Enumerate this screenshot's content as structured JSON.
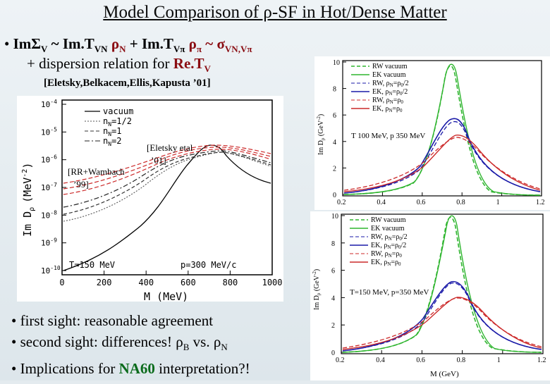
{
  "slide": {
    "title": "Model Comparison of ρ-SF in Hot/Dense Matter",
    "line1": {
      "bullet": "•",
      "a": "ImΣ",
      "a_sub": "V",
      "b": " ~ Im.T",
      "b_sub": "VN",
      "c": " ρ",
      "c_sub": "N",
      "d": " + Im.T",
      "d_sub": "Vπ",
      "e": " ρ",
      "e_sub": "π",
      "f": " ~ σ",
      "f_sub": "VN,Vπ"
    },
    "line2": {
      "text": "+ dispersion relation for ",
      "bold": "Re.T",
      "bold_sub": "V"
    },
    "ref": "[Eletsky,Belkacem,Ellis,Kapusta ’01]",
    "bullets": {
      "b1": "• first sight: reasonable agreement",
      "b2_a": "• second sight: differences!   ρ",
      "b2_sub1": "B",
      "b2_b": " vs. ρ",
      "b2_sub2": "N",
      "b3_a": "• Implications for ",
      "b3_bold": "NA60",
      "b3_b": " interpretation?!"
    }
  },
  "left_plot": {
    "ylabel": "Im D",
    "ylabel_sub": "ρ",
    "yunit": "(MeV",
    "yunit_sup": "-2",
    "yunit_close": ")",
    "xlabel": "M (MeV)",
    "xticks": [
      "0",
      "200",
      "400",
      "600",
      "800",
      "1000"
    ],
    "yticks": [
      "10",
      "10",
      "10",
      "10",
      "10",
      "10",
      "10"
    ],
    "yexp": [
      "-4",
      "-5",
      "-6",
      "-7",
      "-8",
      "-9",
      "-10"
    ],
    "legend": [
      "vacuum",
      "n",
      "n",
      "n"
    ],
    "legend_sub": [
      "",
      "N",
      "N",
      "N"
    ],
    "legend_val": [
      "",
      "=1/2",
      "=1",
      "=2"
    ],
    "label_t": "T=150 MeV",
    "label_p": "p=300 MeV/c",
    "ann_rr": "[RR+Wambach",
    "ann_rr2": "’99]",
    "ann_el": "[Eletsky etal",
    "ann_el2": "’01]"
  },
  "top_plot": {
    "ylabel": "Im D",
    "ylabel_sub": "ρ",
    "yunit": " (GeV",
    "yunit_sup": "-2",
    "yunit_close": ")",
    "yticks": [
      "10",
      "8",
      "6",
      "4",
      "2",
      "0"
    ],
    "xticks": [
      "0.2",
      "0.4",
      "0.6",
      "0.8",
      "1",
      "1.2"
    ],
    "legend": [
      "RW vacuum",
      "EK vacuum",
      "RW, ρ",
      "EK, ρ",
      "RW, ρ",
      "EK, ρ"
    ],
    "legend_sub": [
      "",
      "",
      "N",
      "N",
      "N",
      "N"
    ],
    "legend_val": [
      "",
      "",
      "=ρ",
      "=ρ",
      "=ρ",
      "=ρ"
    ],
    "legend_sub2": [
      "",
      "",
      "0",
      "0",
      "0",
      "0"
    ],
    "legend_tail": [
      "",
      "",
      "/2",
      "/2",
      "",
      ""
    ],
    "label": "T  100 MeV, p  350 MeV"
  },
  "bottom_plot": {
    "ylabel": "Im D",
    "ylabel_sub": "ρ",
    "yunit": " (GeV",
    "yunit_sup": "-2",
    "yunit_close": ")",
    "yticks": [
      "10",
      "8",
      "6",
      "4",
      "2",
      "0"
    ],
    "xticks": [
      "0.2",
      "0.4",
      "0.6",
      "0.8",
      "1",
      "1.2"
    ],
    "xlabel": "M (GeV)",
    "legend": [
      "RW vacuum",
      "EK vacuum",
      "RW, ρ",
      "EK, ρ",
      "RW, ρ",
      "EK, ρ"
    ],
    "legend_sub": [
      "",
      "",
      "N",
      "N",
      "N",
      "N"
    ],
    "legend_val": [
      "",
      "",
      "=ρ",
      "=ρ",
      "=ρ",
      "=ρ"
    ],
    "legend_sub2": [
      "",
      "",
      "0",
      "0",
      "0",
      "0"
    ],
    "legend_tail": [
      "",
      "",
      "/2",
      "/2",
      "",
      ""
    ],
    "label": "T=150 MeV, p=350 MeV"
  },
  "colors": {
    "green": "#2fb52f",
    "blue": "#1a1aa8",
    "red": "#cc2a2a",
    "dark_red": "#8a0d12",
    "na60": "#0b6b1c"
  }
}
